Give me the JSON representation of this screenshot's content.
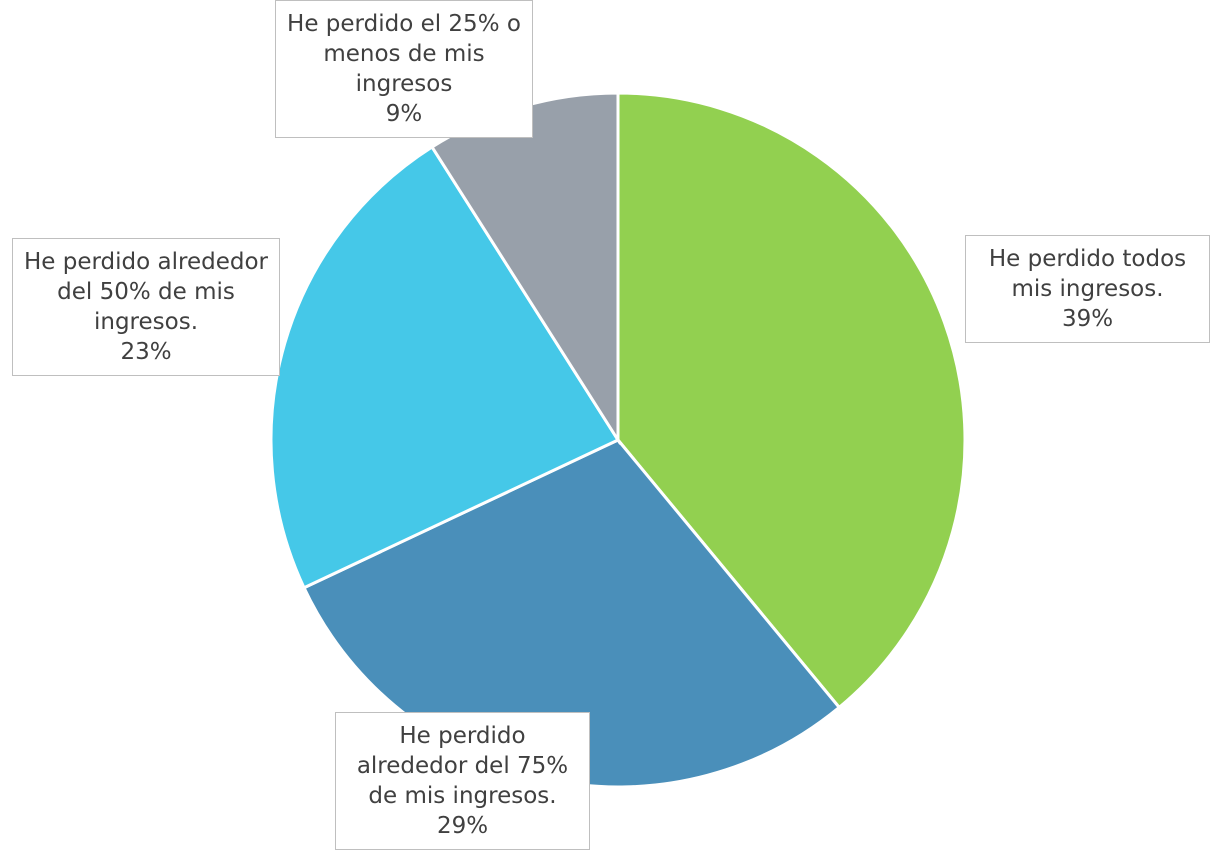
{
  "chart_data": {
    "type": "pie",
    "categories": [
      "He perdido todos mis ingresos.",
      "He perdido alrededor del 75% de mis ingresos.",
      "He perdido alrededor del 50% de mis ingresos.",
      "He perdido el 25% o menos de mis ingresos"
    ],
    "values": [
      39,
      29,
      23,
      9
    ],
    "value_labels": [
      "39%",
      "29%",
      "23%",
      "9%"
    ],
    "colors": [
      "#92d050",
      "#4a8fba",
      "#45c8e8",
      "#98a0aa"
    ]
  }
}
